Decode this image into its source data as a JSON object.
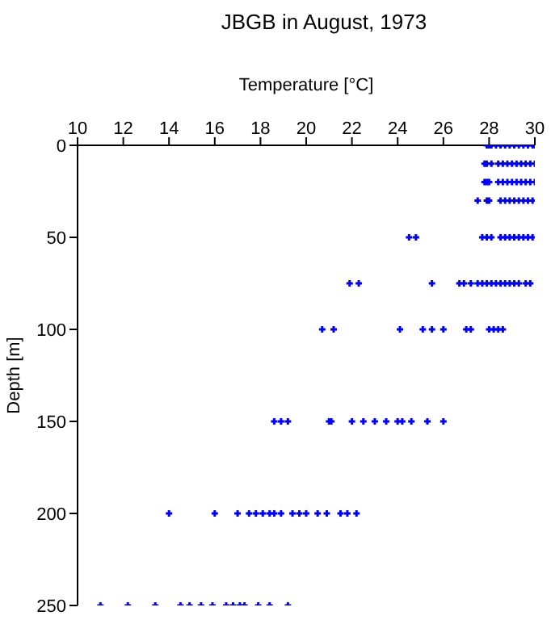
{
  "chart_data": {
    "type": "scatter",
    "title": "JBGB in August, 1973",
    "xlabel": "Temperature [°C]",
    "ylabel": "Depth [m]",
    "xlim": [
      10,
      30
    ],
    "xticks": [
      10,
      12,
      14,
      16,
      18,
      20,
      22,
      24,
      26,
      28,
      30
    ],
    "ylim": [
      250,
      0
    ],
    "yticks": [
      0,
      50,
      100,
      150,
      200,
      250
    ],
    "grid": false,
    "legend": false,
    "marker": "cross",
    "series": [
      {
        "color": "#0000ff",
        "x": [
          27.9,
          28.0,
          28.1,
          28.3,
          28.5,
          28.7,
          28.9,
          29.1,
          29.3,
          29.5,
          29.7,
          29.9,
          30.0,
          27.8,
          27.9,
          28.1,
          28.4,
          28.6,
          28.8,
          29.0,
          29.2,
          29.4,
          29.6,
          29.8,
          30.0,
          27.8,
          27.9,
          28.0,
          28.4,
          28.6,
          28.8,
          29.0,
          29.2,
          29.4,
          29.6,
          29.8,
          30.0,
          27.5,
          27.9,
          28.0,
          28.5,
          28.7,
          28.9,
          29.1,
          29.3,
          29.5,
          29.7,
          29.9,
          24.5,
          24.8,
          27.7,
          27.9,
          28.1,
          28.5,
          28.7,
          28.9,
          29.1,
          29.3,
          29.5,
          29.7,
          29.9,
          21.9,
          22.3,
          25.5,
          26.7,
          26.9,
          27.2,
          27.5,
          27.7,
          27.9,
          28.1,
          28.3,
          28.5,
          28.7,
          28.9,
          29.1,
          29.3,
          29.6,
          29.8,
          20.7,
          21.2,
          24.1,
          25.1,
          25.5,
          26.0,
          27.0,
          27.2,
          28.0,
          28.2,
          28.4,
          28.6,
          18.6,
          18.9,
          19.2,
          21.0,
          21.1,
          22.0,
          22.5,
          23.0,
          23.5,
          24.0,
          24.2,
          24.6,
          25.3,
          26.0,
          14.0,
          16.0,
          17.0,
          17.5,
          17.8,
          18.1,
          18.4,
          18.6,
          18.9,
          19.4,
          19.7,
          20.0,
          20.5,
          20.9,
          21.5,
          21.8,
          22.2,
          11.0,
          12.2,
          13.4,
          14.5,
          14.9,
          15.4,
          15.9,
          16.5,
          16.8,
          17.1,
          17.3,
          17.9,
          18.4,
          19.2
        ],
        "values": [
          0,
          0,
          0,
          0,
          0,
          0,
          0,
          0,
          0,
          0,
          0,
          0,
          0,
          10,
          10,
          10,
          10,
          10,
          10,
          10,
          10,
          10,
          10,
          10,
          10,
          20,
          20,
          20,
          20,
          20,
          20,
          20,
          20,
          20,
          20,
          20,
          20,
          30,
          30,
          30,
          30,
          30,
          30,
          30,
          30,
          30,
          30,
          30,
          50,
          50,
          50,
          50,
          50,
          50,
          50,
          50,
          50,
          50,
          50,
          50,
          50,
          75,
          75,
          75,
          75,
          75,
          75,
          75,
          75,
          75,
          75,
          75,
          75,
          75,
          75,
          75,
          75,
          75,
          75,
          100,
          100,
          100,
          100,
          100,
          100,
          100,
          100,
          100,
          100,
          100,
          100,
          150,
          150,
          150,
          150,
          150,
          150,
          150,
          150,
          150,
          150,
          150,
          150,
          150,
          150,
          200,
          200,
          200,
          200,
          200,
          200,
          200,
          200,
          200,
          200,
          200,
          200,
          200,
          200,
          200,
          200,
          200,
          250,
          250,
          250,
          250,
          250,
          250,
          250,
          250,
          250,
          250,
          250,
          250,
          250,
          250
        ]
      }
    ]
  }
}
